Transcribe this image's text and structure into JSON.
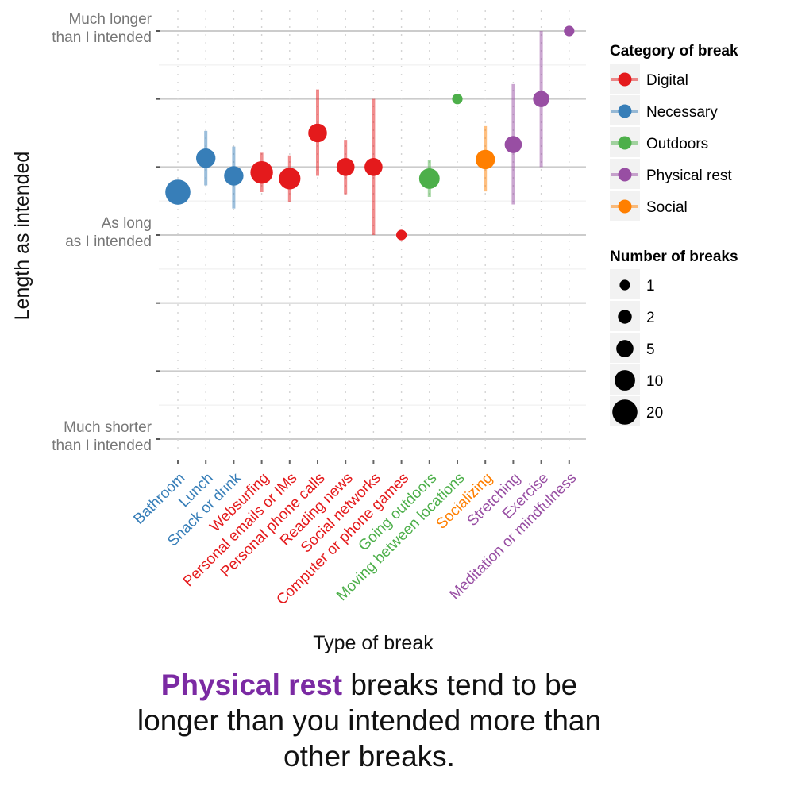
{
  "chart_data": {
    "type": "scatter",
    "xlabel": "Type of break",
    "ylabel": "Length as intended",
    "ytick_labels": [
      {
        "value": 3,
        "line1": "Much longer",
        "line2": "than I intended"
      },
      {
        "value": 0,
        "line1": "As long",
        "line2": "as I intended"
      },
      {
        "value": -3,
        "line1": "Much shorter",
        "line2": "than I intended"
      }
    ],
    "ylim": [
      -3,
      3
    ],
    "grid": true,
    "legend_position": "right",
    "category_legend": {
      "title": "Category of break",
      "items": [
        {
          "name": "Digital",
          "color": "#e41a1c"
        },
        {
          "name": "Necessary",
          "color": "#377eb8"
        },
        {
          "name": "Outdoors",
          "color": "#4daf4a"
        },
        {
          "name": "Physical rest",
          "color": "#984ea3"
        },
        {
          "name": "Social",
          "color": "#ff7f00"
        }
      ]
    },
    "size_legend": {
      "title": "Number of breaks",
      "items": [
        {
          "label": "1",
          "n": 1
        },
        {
          "label": "2",
          "n": 2
        },
        {
          "label": "5",
          "n": 5
        },
        {
          "label": "10",
          "n": 10
        },
        {
          "label": "20",
          "n": 20
        }
      ]
    },
    "points": [
      {
        "label": "Bathroom",
        "category": "Necessary",
        "y": 0.63,
        "low": null,
        "high": null,
        "n": 20
      },
      {
        "label": "Lunch",
        "category": "Necessary",
        "y": 1.13,
        "low": 0.73,
        "high": 1.53,
        "n": 8
      },
      {
        "label": "Snack or drink",
        "category": "Necessary",
        "y": 0.87,
        "low": 0.39,
        "high": 1.3,
        "n": 8
      },
      {
        "label": "Websurfing",
        "category": "Digital",
        "y": 0.92,
        "low": 0.63,
        "high": 1.21,
        "n": 14
      },
      {
        "label": "Personal emails or IMs",
        "category": "Digital",
        "y": 0.83,
        "low": 0.49,
        "high": 1.17,
        "n": 12
      },
      {
        "label": "Personal phone calls",
        "category": "Digital",
        "y": 1.5,
        "low": 0.87,
        "high": 2.14,
        "n": 7
      },
      {
        "label": "Reading news",
        "category": "Digital",
        "y": 1.0,
        "low": 0.6,
        "high": 1.4,
        "n": 6
      },
      {
        "label": "Social networks",
        "category": "Digital",
        "y": 1.0,
        "low": 0.0,
        "high": 2.0,
        "n": 6
      },
      {
        "label": "Computer or phone games",
        "category": "Digital",
        "y": 0.0,
        "low": null,
        "high": null,
        "n": 1
      },
      {
        "label": "Going outdoors",
        "category": "Outdoors",
        "y": 0.83,
        "low": 0.56,
        "high": 1.1,
        "n": 10
      },
      {
        "label": "Moving between locations",
        "category": "Outdoors",
        "y": 2.0,
        "low": null,
        "high": null,
        "n": 1
      },
      {
        "label": "Socializing",
        "category": "Social",
        "y": 1.11,
        "low": 0.64,
        "high": 1.6,
        "n": 8
      },
      {
        "label": "Stretching",
        "category": "Physical rest",
        "y": 1.33,
        "low": 0.45,
        "high": 2.22,
        "n": 5
      },
      {
        "label": "Exercise",
        "category": "Physical rest",
        "y": 2.0,
        "low": 1.0,
        "high": 3.0,
        "n": 4
      },
      {
        "label": "Meditation or mindfulness",
        "category": "Physical rest",
        "y": 3.0,
        "low": null,
        "high": null,
        "n": 1
      }
    ]
  },
  "caption": {
    "highlight": "Physical rest",
    "highlight_color": "#7b2aa3",
    "rest": " breaks tend to be longer than you intended more than other breaks."
  }
}
